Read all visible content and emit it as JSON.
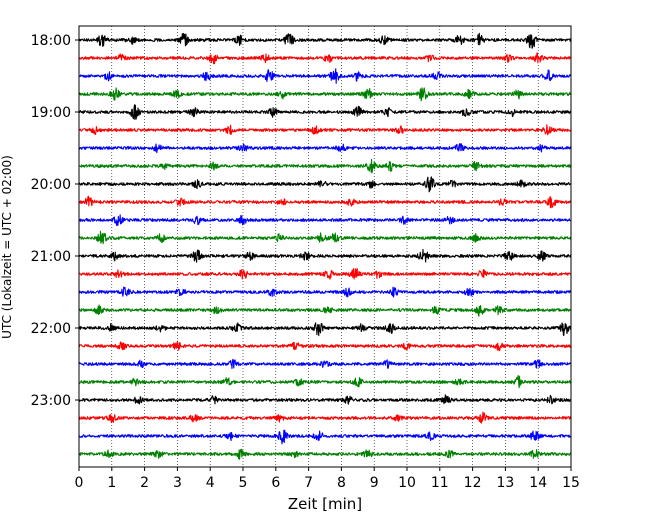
{
  "chart_data": {
    "type": "line",
    "title": "",
    "xlabel": "Zeit  [min]",
    "ylabel": "UTC (Lokalzeit = UTC + 02:00)",
    "xlim": [
      0,
      15
    ],
    "x_ticks": [
      "0",
      "1",
      "2",
      "3",
      "4",
      "5",
      "6",
      "7",
      "8",
      "9",
      "10",
      "11",
      "12",
      "13",
      "14",
      "15"
    ],
    "y_ticks": [
      "18:00",
      "19:00",
      "20:00",
      "21:00",
      "22:00",
      "23:00"
    ],
    "grid": "vertical dotted",
    "trace_interval_min": 15,
    "trace_colors": [
      "#000000",
      "#ff0000",
      "#0000ff",
      "#008000"
    ],
    "series": [
      {
        "start": "18:00",
        "color": "#000000",
        "events": [
          [
            0.7,
            0.9
          ],
          [
            1.6,
            0.6
          ],
          [
            3.2,
            1.0
          ],
          [
            4.9,
            0.7
          ],
          [
            6.4,
            1.3
          ],
          [
            9.3,
            0.6
          ],
          [
            11.6,
            0.7
          ],
          [
            12.2,
            0.9
          ],
          [
            13.8,
            1.4
          ]
        ]
      },
      {
        "start": "18:15",
        "color": "#ff0000",
        "events": [
          [
            1.3,
            0.6
          ],
          [
            4.1,
            0.8
          ],
          [
            5.7,
            0.6
          ],
          [
            7.6,
            0.7
          ],
          [
            10.7,
            0.5
          ],
          [
            13.1,
            0.6
          ],
          [
            14.0,
            0.7
          ]
        ]
      },
      {
        "start": "18:30",
        "color": "#0000ff",
        "events": [
          [
            0.9,
            0.6
          ],
          [
            3.9,
            0.7
          ],
          [
            5.8,
            1.0
          ],
          [
            7.8,
            1.2
          ],
          [
            8.5,
            0.7
          ],
          [
            10.9,
            0.6
          ],
          [
            14.3,
            0.8
          ]
        ]
      },
      {
        "start": "18:45",
        "color": "#008000",
        "events": [
          [
            1.1,
            0.9
          ],
          [
            3.0,
            0.7
          ],
          [
            6.2,
            0.6
          ],
          [
            8.8,
            1.0
          ],
          [
            10.5,
            1.3
          ],
          [
            11.9,
            0.7
          ],
          [
            13.4,
            0.8
          ]
        ]
      },
      {
        "start": "19:00",
        "color": "#000000",
        "events": [
          [
            1.7,
            1.1
          ],
          [
            3.5,
            0.6
          ],
          [
            5.9,
            0.7
          ],
          [
            8.5,
            0.8
          ],
          [
            9.4,
            0.6
          ],
          [
            11.8,
            0.8
          ],
          [
            13.2,
            0.6
          ]
        ]
      },
      {
        "start": "19:15",
        "color": "#ff0000",
        "events": [
          [
            0.5,
            0.5
          ],
          [
            4.6,
            0.6
          ],
          [
            7.2,
            0.5
          ],
          [
            9.8,
            0.5
          ],
          [
            14.3,
            0.7
          ]
        ]
      },
      {
        "start": "19:30",
        "color": "#0000ff",
        "events": [
          [
            2.4,
            0.6
          ],
          [
            5.0,
            0.5
          ],
          [
            8.0,
            0.6
          ],
          [
            11.6,
            0.6
          ],
          [
            14.1,
            0.5
          ]
        ]
      },
      {
        "start": "19:45",
        "color": "#008000",
        "events": [
          [
            2.6,
            0.5
          ],
          [
            4.1,
            0.6
          ],
          [
            8.9,
            1.2
          ],
          [
            9.5,
            0.7
          ],
          [
            12.1,
            0.6
          ]
        ]
      },
      {
        "start": "20:00",
        "color": "#000000",
        "events": [
          [
            3.6,
            0.6
          ],
          [
            7.4,
            0.6
          ],
          [
            8.9,
            0.5
          ],
          [
            10.7,
            1.2
          ],
          [
            11.4,
            0.5
          ],
          [
            13.5,
            0.5
          ]
        ]
      },
      {
        "start": "20:15",
        "color": "#ff0000",
        "events": [
          [
            0.3,
            0.8
          ],
          [
            3.1,
            0.6
          ],
          [
            6.2,
            0.5
          ],
          [
            8.3,
            0.6
          ],
          [
            12.9,
            0.5
          ],
          [
            14.4,
            0.9
          ]
        ]
      },
      {
        "start": "20:30",
        "color": "#0000ff",
        "events": [
          [
            1.2,
            0.9
          ],
          [
            3.6,
            0.6
          ],
          [
            5.0,
            0.7
          ],
          [
            9.9,
            0.5
          ],
          [
            11.3,
            0.5
          ]
        ]
      },
      {
        "start": "20:45",
        "color": "#008000",
        "events": [
          [
            0.7,
            1.1
          ],
          [
            2.5,
            0.6
          ],
          [
            6.1,
            0.5
          ],
          [
            7.4,
            0.8
          ],
          [
            7.8,
            0.8
          ],
          [
            12.1,
            0.6
          ]
        ]
      },
      {
        "start": "21:00",
        "color": "#000000",
        "events": [
          [
            1.1,
            0.6
          ],
          [
            3.6,
            1.0
          ],
          [
            5.2,
            0.6
          ],
          [
            6.9,
            0.6
          ],
          [
            10.5,
            1.2
          ],
          [
            13.1,
            0.8
          ],
          [
            14.1,
            0.7
          ]
        ]
      },
      {
        "start": "21:15",
        "color": "#ff0000",
        "events": [
          [
            1.2,
            0.6
          ],
          [
            5.0,
            0.8
          ],
          [
            7.6,
            0.8
          ],
          [
            8.4,
            1.1
          ],
          [
            9.1,
            0.6
          ],
          [
            12.3,
            0.6
          ]
        ]
      },
      {
        "start": "21:30",
        "color": "#0000ff",
        "events": [
          [
            1.4,
            0.7
          ],
          [
            3.1,
            0.6
          ],
          [
            5.9,
            0.6
          ],
          [
            8.2,
            0.6
          ],
          [
            9.6,
            0.6
          ],
          [
            11.9,
            0.7
          ]
        ]
      },
      {
        "start": "21:45",
        "color": "#008000",
        "events": [
          [
            0.6,
            0.6
          ],
          [
            4.2,
            0.6
          ],
          [
            7.6,
            0.5
          ],
          [
            10.9,
            0.6
          ],
          [
            12.2,
            1.0
          ],
          [
            12.8,
            0.6
          ]
        ]
      },
      {
        "start": "22:00",
        "color": "#000000",
        "events": [
          [
            1.0,
            0.6
          ],
          [
            2.5,
            0.5
          ],
          [
            4.8,
            0.7
          ],
          [
            7.3,
            1.1
          ],
          [
            8.6,
            0.6
          ],
          [
            9.5,
            0.8
          ],
          [
            14.8,
            1.1
          ]
        ]
      },
      {
        "start": "22:15",
        "color": "#ff0000",
        "events": [
          [
            1.3,
            0.5
          ],
          [
            3.0,
            0.7
          ],
          [
            6.6,
            0.5
          ],
          [
            10.0,
            0.5
          ],
          [
            12.8,
            0.6
          ]
        ]
      },
      {
        "start": "22:30",
        "color": "#0000ff",
        "events": [
          [
            1.9,
            0.5
          ],
          [
            4.7,
            0.6
          ],
          [
            7.5,
            0.5
          ],
          [
            9.4,
            0.5
          ],
          [
            14.0,
            0.6
          ]
        ]
      },
      {
        "start": "22:45",
        "color": "#008000",
        "events": [
          [
            1.7,
            0.5
          ],
          [
            4.5,
            0.6
          ],
          [
            6.7,
            0.5
          ],
          [
            8.5,
            0.7
          ],
          [
            11.6,
            0.5
          ],
          [
            13.4,
            0.9
          ]
        ]
      },
      {
        "start": "23:00",
        "color": "#000000",
        "events": [
          [
            1.8,
            0.6
          ],
          [
            4.1,
            0.5
          ],
          [
            8.2,
            0.5
          ],
          [
            11.2,
            0.8
          ],
          [
            14.4,
            0.6
          ]
        ]
      },
      {
        "start": "23:15",
        "color": "#ff0000",
        "events": [
          [
            1.0,
            0.6
          ],
          [
            3.5,
            0.5
          ],
          [
            6.1,
            0.5
          ],
          [
            9.7,
            0.5
          ],
          [
            12.3,
            0.8
          ]
        ]
      },
      {
        "start": "23:30",
        "color": "#0000ff",
        "events": [
          [
            4.6,
            0.6
          ],
          [
            6.2,
            1.2
          ],
          [
            7.3,
            0.8
          ],
          [
            10.7,
            0.6
          ],
          [
            13.9,
            0.8
          ]
        ]
      },
      {
        "start": "23:45",
        "color": "#008000",
        "events": [
          [
            0.9,
            0.5
          ],
          [
            2.4,
            0.5
          ],
          [
            4.9,
            0.7
          ],
          [
            6.6,
            0.5
          ],
          [
            8.8,
            0.6
          ],
          [
            11.3,
            0.5
          ],
          [
            13.9,
            0.6
          ]
        ]
      }
    ]
  }
}
